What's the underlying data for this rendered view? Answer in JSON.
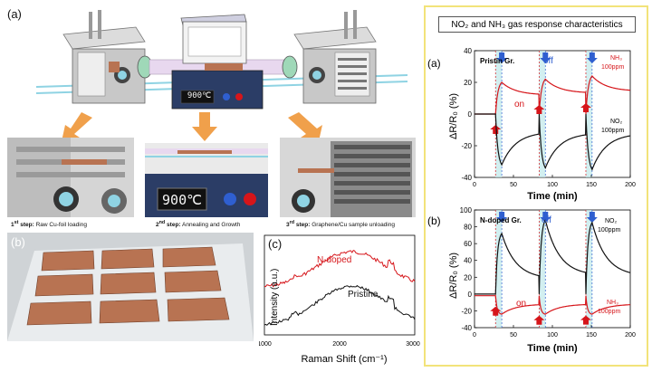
{
  "panels": {
    "a_label": "(a)",
    "b_label": "(b)",
    "c_label": "(c)"
  },
  "furnace": {
    "temp_display": "900℃",
    "steps": [
      {
        "num": "1",
        "suffix": "st",
        "word": "step:",
        "text": "Raw Cu-foil loading"
      },
      {
        "num": "2",
        "suffix": "nd",
        "word": "step:",
        "text": "Annealing and Growth"
      },
      {
        "num": "3",
        "suffix": "rd",
        "word": "step:",
        "text": "Graphene/Cu sample unloading"
      }
    ]
  },
  "raman": {
    "label_ndoped": "N-doped",
    "label_pristine": "Pristine",
    "ylabel": "Intensity (a.u.)",
    "xlabel": "Raman Shift (cm⁻¹)",
    "xticks": [
      "1000",
      "2000",
      "3000"
    ],
    "xlim": [
      1000,
      3000
    ]
  },
  "gas_box": {
    "title": "NO₂ and NH₃ gas response characteristics",
    "top": {
      "label": "(a)",
      "sample": "Pristin Gr.",
      "off": "off",
      "on": "on",
      "nh3": "NH₃",
      "nh3_conc": "100ppm",
      "no2": "NO₂",
      "no2_conc": "100ppm",
      "yticks": [
        "40",
        "20",
        "0",
        "-20",
        "-40"
      ],
      "xticks": [
        "0",
        "50",
        "100",
        "150",
        "200"
      ],
      "ylim": [
        -40,
        40
      ],
      "xlim": [
        0,
        200
      ]
    },
    "bottom": {
      "label": "(b)",
      "sample": "N-doped Gr.",
      "off": "off",
      "on": "on",
      "no2": "NO₂",
      "no2_conc": "100ppm",
      "nh3": "NH₃",
      "nh3_conc": "100ppm",
      "yticks": [
        "100",
        "80",
        "60",
        "40",
        "20",
        "0",
        "-20",
        "-40"
      ],
      "xticks": [
        "0",
        "50",
        "100",
        "150",
        "200"
      ],
      "ylim": [
        -40,
        100
      ],
      "xlim": [
        0,
        200
      ]
    },
    "ylabel": "ΔR/R₀ (%)",
    "xlabel": "Time (min)"
  },
  "colors": {
    "red": "#d6151a",
    "black": "#111111",
    "blue": "#2f5fd0",
    "orange": "#f0a04b",
    "box_border": "#f2e37a",
    "copper": "#b87352"
  }
}
